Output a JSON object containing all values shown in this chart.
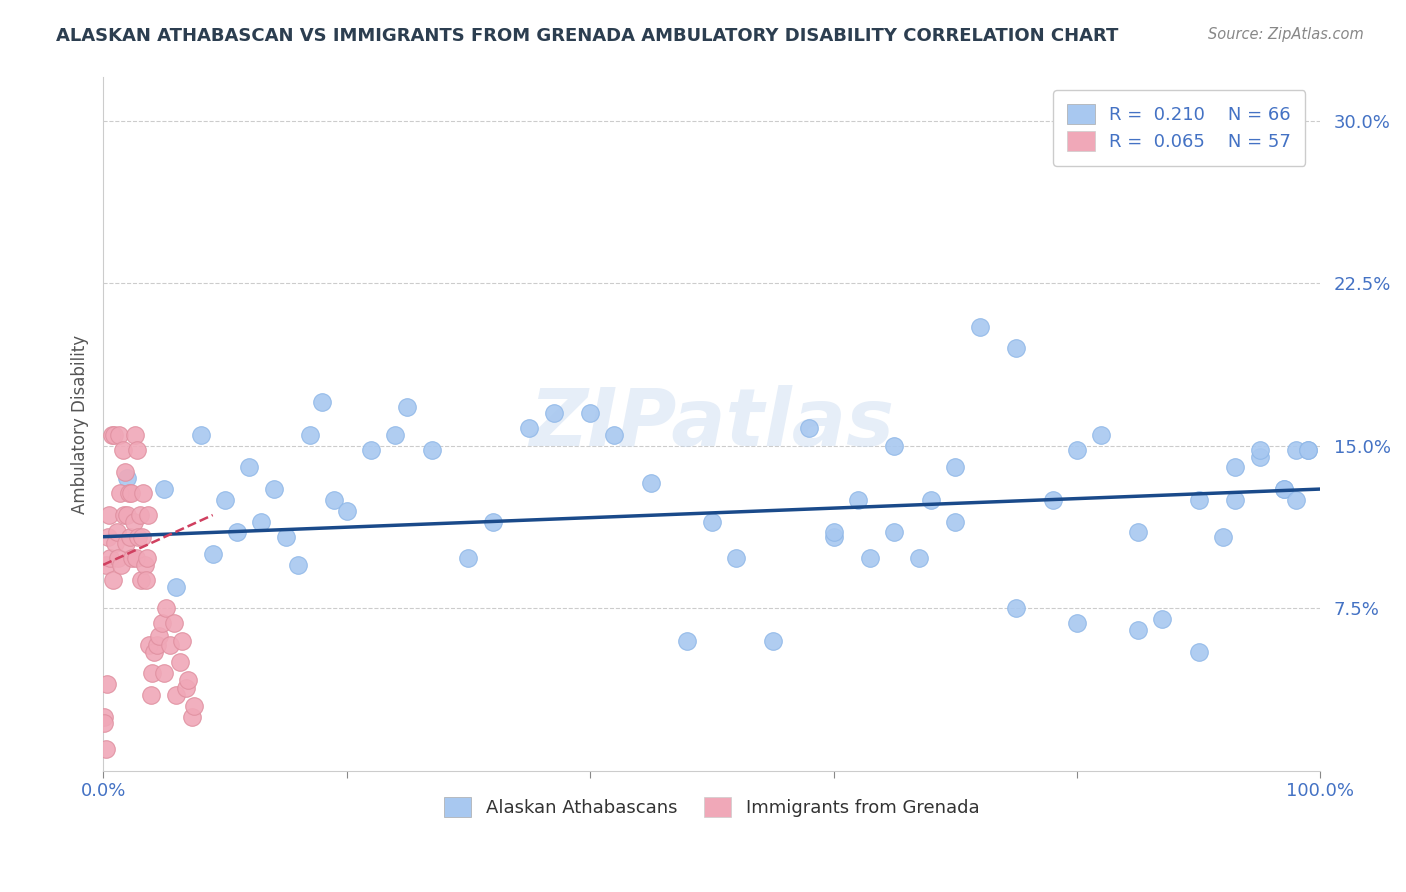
{
  "title": "ALASKAN ATHABASCAN VS IMMIGRANTS FROM GRENADA AMBULATORY DISABILITY CORRELATION CHART",
  "source": "Source: ZipAtlas.com",
  "ylabel": "Ambulatory Disability",
  "xlim": [
    0.0,
    1.0
  ],
  "ylim": [
    0.0,
    0.32
  ],
  "yticks": [
    0.075,
    0.15,
    0.225,
    0.3
  ],
  "ytick_labels": [
    "7.5%",
    "15.0%",
    "22.5%",
    "30.0%"
  ],
  "blue_color": "#a8c8f0",
  "blue_edge_color": "#90b8e8",
  "pink_color": "#f0a8b8",
  "pink_edge_color": "#e090a0",
  "blue_line_color": "#1a4a8a",
  "pink_line_color": "#d04060",
  "legend_R1": "R =  0.210",
  "legend_N1": "N = 66",
  "legend_R2": "R =  0.065",
  "legend_N2": "N = 57",
  "blue_scatter_x": [
    0.02,
    0.05,
    0.06,
    0.08,
    0.09,
    0.1,
    0.11,
    0.12,
    0.13,
    0.14,
    0.15,
    0.16,
    0.17,
    0.18,
    0.19,
    0.2,
    0.22,
    0.24,
    0.25,
    0.27,
    0.3,
    0.32,
    0.35,
    0.37,
    0.4,
    0.42,
    0.45,
    0.48,
    0.5,
    0.52,
    0.55,
    0.58,
    0.6,
    0.62,
    0.63,
    0.65,
    0.67,
    0.68,
    0.7,
    0.72,
    0.75,
    0.78,
    0.8,
    0.82,
    0.85,
    0.87,
    0.9,
    0.92,
    0.93,
    0.95,
    0.97,
    0.98,
    0.99,
    0.6,
    0.65,
    0.7,
    0.75,
    0.8,
    0.85,
    0.87,
    0.9,
    0.93,
    0.95,
    0.97,
    0.98,
    0.99
  ],
  "blue_scatter_y": [
    0.135,
    0.13,
    0.085,
    0.155,
    0.1,
    0.125,
    0.11,
    0.14,
    0.115,
    0.13,
    0.108,
    0.095,
    0.155,
    0.17,
    0.125,
    0.12,
    0.148,
    0.155,
    0.168,
    0.148,
    0.098,
    0.115,
    0.158,
    0.165,
    0.165,
    0.155,
    0.133,
    0.06,
    0.115,
    0.098,
    0.06,
    0.158,
    0.108,
    0.125,
    0.098,
    0.11,
    0.098,
    0.125,
    0.115,
    0.205,
    0.195,
    0.125,
    0.148,
    0.155,
    0.11,
    0.07,
    0.055,
    0.108,
    0.14,
    0.145,
    0.13,
    0.148,
    0.148,
    0.11,
    0.15,
    0.14,
    0.075,
    0.068,
    0.065,
    0.29,
    0.125,
    0.125,
    0.148,
    0.13,
    0.125,
    0.148
  ],
  "pink_scatter_x": [
    0.002,
    0.004,
    0.005,
    0.006,
    0.007,
    0.008,
    0.009,
    0.01,
    0.011,
    0.012,
    0.013,
    0.014,
    0.015,
    0.016,
    0.017,
    0.018,
    0.019,
    0.02,
    0.021,
    0.022,
    0.023,
    0.024,
    0.025,
    0.026,
    0.027,
    0.028,
    0.029,
    0.03,
    0.031,
    0.032,
    0.033,
    0.034,
    0.035,
    0.036,
    0.037,
    0.038,
    0.039,
    0.04,
    0.042,
    0.044,
    0.046,
    0.048,
    0.05,
    0.052,
    0.055,
    0.058,
    0.06,
    0.063,
    0.065,
    0.068,
    0.07,
    0.073,
    0.075,
    0.003,
    0.001,
    0.001,
    0.002
  ],
  "pink_scatter_y": [
    0.095,
    0.108,
    0.118,
    0.098,
    0.155,
    0.088,
    0.155,
    0.105,
    0.11,
    0.098,
    0.155,
    0.128,
    0.095,
    0.148,
    0.118,
    0.138,
    0.105,
    0.118,
    0.128,
    0.108,
    0.128,
    0.098,
    0.115,
    0.155,
    0.098,
    0.148,
    0.108,
    0.118,
    0.088,
    0.108,
    0.128,
    0.095,
    0.088,
    0.098,
    0.118,
    0.058,
    0.035,
    0.045,
    0.055,
    0.058,
    0.062,
    0.068,
    0.045,
    0.075,
    0.058,
    0.068,
    0.035,
    0.05,
    0.06,
    0.038,
    0.042,
    0.025,
    0.03,
    0.04,
    0.025,
    0.022,
    0.01
  ],
  "blue_trend_x0": 0.0,
  "blue_trend_x1": 1.0,
  "blue_trend_y0": 0.108,
  "blue_trend_y1": 0.13,
  "pink_trend_x0": 0.0,
  "pink_trend_x1": 0.09,
  "pink_trend_y0": 0.095,
  "pink_trend_y1": 0.118,
  "background_color": "#ffffff",
  "grid_color": "#cccccc",
  "title_color": "#2c3e50",
  "source_color": "#888888",
  "watermark": "ZIPatlas"
}
